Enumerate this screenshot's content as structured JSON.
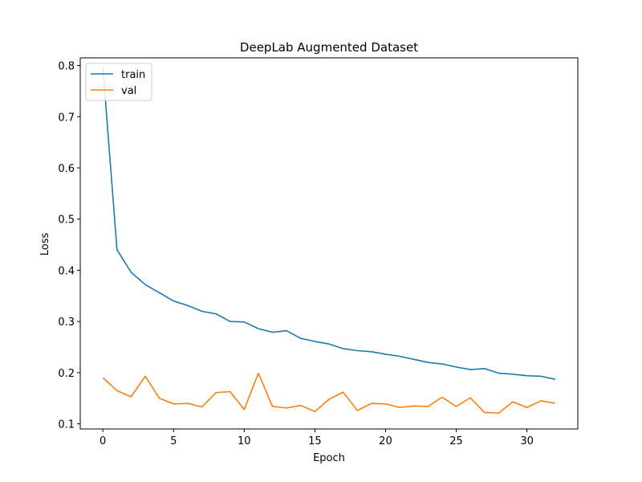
{
  "chart_data": {
    "type": "line",
    "title": "DeepLab Augmented Dataset",
    "xlabel": "Epoch",
    "ylabel": "Loss",
    "xlim": [
      -1.6,
      33.6
    ],
    "ylim": [
      0.09,
      0.815
    ],
    "xticks": [
      0,
      5,
      10,
      15,
      20,
      25,
      30
    ],
    "yticks": [
      0.1,
      0.2,
      0.3,
      0.4,
      0.5,
      0.6,
      0.7,
      0.8
    ],
    "legend_position": "upper-left",
    "grid": false,
    "x": [
      0,
      1,
      2,
      3,
      4,
      5,
      6,
      7,
      8,
      9,
      10,
      11,
      12,
      13,
      14,
      15,
      16,
      17,
      18,
      19,
      20,
      21,
      22,
      23,
      24,
      25,
      26,
      27,
      28,
      29,
      30,
      31,
      32
    ],
    "series": [
      {
        "name": "train",
        "color": "#1f77b4",
        "values": [
          0.797,
          0.44,
          0.396,
          0.372,
          0.356,
          0.34,
          0.331,
          0.32,
          0.315,
          0.3,
          0.299,
          0.286,
          0.279,
          0.282,
          0.267,
          0.261,
          0.256,
          0.247,
          0.243,
          0.241,
          0.236,
          0.232,
          0.226,
          0.22,
          0.217,
          0.211,
          0.206,
          0.208,
          0.199,
          0.197,
          0.194,
          0.193,
          0.187
        ]
      },
      {
        "name": "val",
        "color": "#ff7f0e",
        "values": [
          0.19,
          0.165,
          0.153,
          0.193,
          0.15,
          0.139,
          0.14,
          0.133,
          0.161,
          0.163,
          0.128,
          0.199,
          0.134,
          0.131,
          0.136,
          0.124,
          0.148,
          0.162,
          0.126,
          0.14,
          0.139,
          0.132,
          0.135,
          0.134,
          0.152,
          0.134,
          0.151,
          0.122,
          0.121,
          0.143,
          0.132,
          0.145,
          0.14
        ]
      }
    ]
  }
}
